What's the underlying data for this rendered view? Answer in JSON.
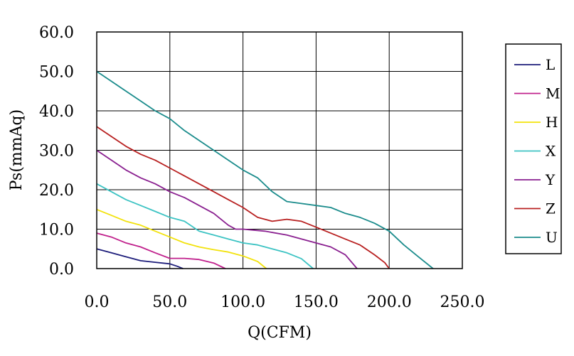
{
  "chart_data": {
    "type": "line",
    "title": "",
    "xlabel": "Q(CFM)",
    "ylabel": "Ps(mmAq)",
    "xlim": [
      0,
      250
    ],
    "ylim": [
      0,
      60
    ],
    "x_ticks": [
      "0.0",
      "50.0",
      "100.0",
      "150.0",
      "200.0",
      "250.0"
    ],
    "y_ticks": [
      "0.0",
      "10.0",
      "20.0",
      "30.0",
      "40.0",
      "50.0",
      "60.0"
    ],
    "grid": true,
    "legend_position": "right",
    "series": [
      {
        "name": "L",
        "color": "#1c1c7a",
        "x": [
          0,
          10,
          20,
          30,
          40,
          50,
          55,
          59
        ],
        "y": [
          5,
          4,
          3,
          2,
          1.6,
          1.2,
          0.6,
          0
        ]
      },
      {
        "name": "M",
        "color": "#c0208c",
        "x": [
          0,
          10,
          20,
          30,
          40,
          50,
          60,
          70,
          80,
          88
        ],
        "y": [
          9,
          8,
          6.5,
          5.5,
          4,
          2.6,
          2.6,
          2.3,
          1.4,
          0
        ]
      },
      {
        "name": "H",
        "color": "#f2e20c",
        "x": [
          0,
          10,
          20,
          30,
          40,
          50,
          60,
          70,
          80,
          90,
          100,
          110,
          116
        ],
        "y": [
          15,
          13.5,
          12,
          11,
          9.5,
          8,
          6.5,
          5.5,
          4.8,
          4.2,
          3.2,
          1.8,
          0
        ]
      },
      {
        "name": "X",
        "color": "#3cc3c3",
        "x": [
          0,
          10,
          20,
          30,
          40,
          50,
          60,
          70,
          80,
          90,
          100,
          110,
          120,
          130,
          140,
          148
        ],
        "y": [
          21.5,
          19.5,
          17.5,
          16,
          14.5,
          13,
          12,
          9.5,
          8.5,
          7.5,
          6.5,
          6,
          5,
          4,
          2.5,
          0
        ]
      },
      {
        "name": "Y",
        "color": "#8a2090",
        "x": [
          0,
          10,
          20,
          30,
          40,
          50,
          60,
          70,
          80,
          90,
          95,
          100,
          115,
          130,
          145,
          160,
          170,
          178
        ],
        "y": [
          30,
          27.5,
          25,
          23,
          21.5,
          19.5,
          18,
          16,
          14,
          11,
          10,
          10,
          9.5,
          8.5,
          7,
          5.5,
          3.5,
          0
        ]
      },
      {
        "name": "Z",
        "color": "#b82020",
        "x": [
          0,
          10,
          20,
          30,
          40,
          50,
          60,
          70,
          80,
          90,
          100,
          110,
          120,
          130,
          140,
          150,
          160,
          170,
          180,
          190,
          197,
          200
        ],
        "y": [
          36,
          33.5,
          31,
          29,
          27.5,
          25.5,
          23.5,
          21.5,
          19.5,
          17.5,
          15.5,
          13,
          12,
          12.5,
          12,
          10.5,
          9,
          7.5,
          6,
          3.5,
          1.5,
          0
        ]
      },
      {
        "name": "U",
        "color": "#1b8c8c",
        "x": [
          0,
          10,
          20,
          30,
          40,
          50,
          60,
          70,
          80,
          90,
          100,
          110,
          120,
          130,
          140,
          150,
          160,
          170,
          180,
          190,
          200,
          210,
          220,
          230
        ],
        "y": [
          50,
          47.5,
          45,
          42.5,
          40,
          38,
          35,
          32.5,
          30,
          27.5,
          25,
          23,
          19.5,
          17,
          16.5,
          16,
          15.5,
          14,
          13,
          11.5,
          9.5,
          6,
          3,
          0
        ]
      }
    ]
  }
}
